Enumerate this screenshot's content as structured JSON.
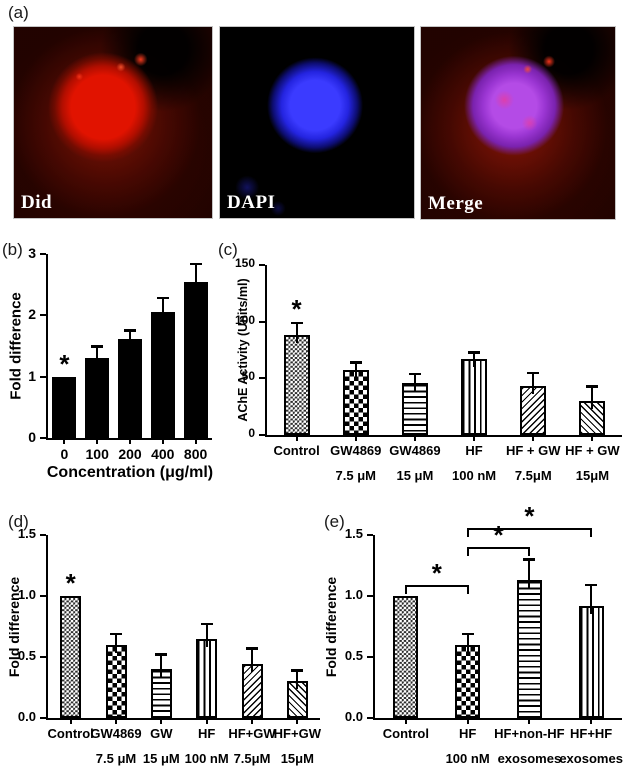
{
  "figure": {
    "panel_a": {
      "label": "(a)",
      "images": [
        {
          "label": "Did",
          "stain": "red-membrane"
        },
        {
          "label": "DAPI",
          "stain": "blue-nucleus"
        },
        {
          "label": "Merge",
          "stain": "overlay"
        }
      ],
      "colors": {
        "did_red": "#e11300",
        "dapi_blue": "#2b2bee",
        "merge_purple": "#a93fe0",
        "image_background": "#000000"
      }
    },
    "ink_color": "#000000",
    "background_color": "#ffffff"
  },
  "chart_data": [
    {
      "id": "b",
      "type": "bar",
      "panel_label": "(b)",
      "xlabel": "Concentration (μg/ml)",
      "ylabel": "Fold difference",
      "ylim": [
        0,
        3
      ],
      "ytick_labels": [
        "0",
        "1",
        "2",
        "3"
      ],
      "categories": [
        "0",
        "100",
        "200",
        "400",
        "800"
      ],
      "values": [
        1.0,
        1.3,
        1.61,
        2.06,
        2.55
      ],
      "errors": [
        0,
        0.21,
        0.16,
        0.24,
        0.31
      ],
      "bar_style": [
        "solid",
        "solid",
        "solid",
        "solid",
        "solid"
      ],
      "star_indices": [
        0
      ],
      "star_symbol": "*",
      "grid": false,
      "legend": "none"
    },
    {
      "id": "c",
      "type": "bar",
      "panel_label": "(c)",
      "xlabel": "",
      "ylabel": "AChE Activity (Units/ml)",
      "ylim": [
        0,
        150
      ],
      "ytick_labels": [
        "0",
        "50",
        "100",
        "150"
      ],
      "categories": [
        [
          "Control",
          ""
        ],
        [
          "GW4869",
          "7.5 μM"
        ],
        [
          "GW4869",
          "15 μM"
        ],
        [
          "HF",
          "100 nM"
        ],
        [
          "HF + GW",
          "7.5μM"
        ],
        [
          "HF + GW",
          "15μM"
        ]
      ],
      "values": [
        88,
        57,
        46,
        67,
        43,
        30
      ],
      "errors": [
        12,
        8,
        9,
        7,
        13,
        14
      ],
      "bar_style": [
        "fine-checker",
        "coarse-checker",
        "hlines",
        "vlines",
        "diag-up",
        "diag-down"
      ],
      "star_indices": [
        0
      ],
      "star_symbol": "*",
      "grid": false,
      "legend": "none"
    },
    {
      "id": "d",
      "type": "bar",
      "panel_label": "(d)",
      "xlabel": "",
      "ylabel": "Fold difference",
      "ylim": [
        0,
        1.5
      ],
      "ytick_labels": [
        "0.0",
        "0.5",
        "1.0",
        "1.5"
      ],
      "categories": [
        [
          "Control",
          ""
        ],
        [
          "GW4869",
          "7.5 μM"
        ],
        [
          "GW",
          "15 μM"
        ],
        [
          "HF",
          "100 nM"
        ],
        [
          "HF+GW",
          "7.5μM"
        ],
        [
          "HF+GW",
          "15μM"
        ]
      ],
      "values": [
        1.0,
        0.6,
        0.4,
        0.65,
        0.44,
        0.3
      ],
      "errors": [
        0,
        0.1,
        0.13,
        0.13,
        0.14,
        0.1
      ],
      "bar_style": [
        "fine-checker",
        "coarse-checker",
        "hlines",
        "vlines",
        "diag-up",
        "diag-down"
      ],
      "star_indices": [
        0
      ],
      "star_symbol": "*",
      "grid": false,
      "legend": "none"
    },
    {
      "id": "e",
      "type": "bar",
      "panel_label": "(e)",
      "xlabel": "",
      "ylabel": "Fold difference",
      "ylim": [
        0,
        1.5
      ],
      "ytick_labels": [
        "0.0",
        "0.5",
        "1.0",
        "1.5"
      ],
      "categories": [
        [
          "Control",
          ""
        ],
        [
          "HF",
          "100 nM"
        ],
        [
          "HF+non-HF",
          "exosomes"
        ],
        [
          "HF+HF",
          "exosomes"
        ]
      ],
      "values": [
        1.0,
        0.6,
        1.13,
        0.92
      ],
      "errors": [
        0,
        0.1,
        0.18,
        0.18
      ],
      "bar_style": [
        "fine-checker",
        "coarse-checker",
        "hlines",
        "vlines"
      ],
      "star_indices": [],
      "star_symbol": "*",
      "brackets": [
        {
          "from": 0,
          "to": 1,
          "y": 1.09,
          "label": "*"
        },
        {
          "from": 1,
          "to": 2,
          "y": 1.4,
          "label": "*"
        },
        {
          "from": 1,
          "to": 3,
          "y": 1.56,
          "label": "*"
        }
      ],
      "grid": false,
      "legend": "none"
    }
  ]
}
